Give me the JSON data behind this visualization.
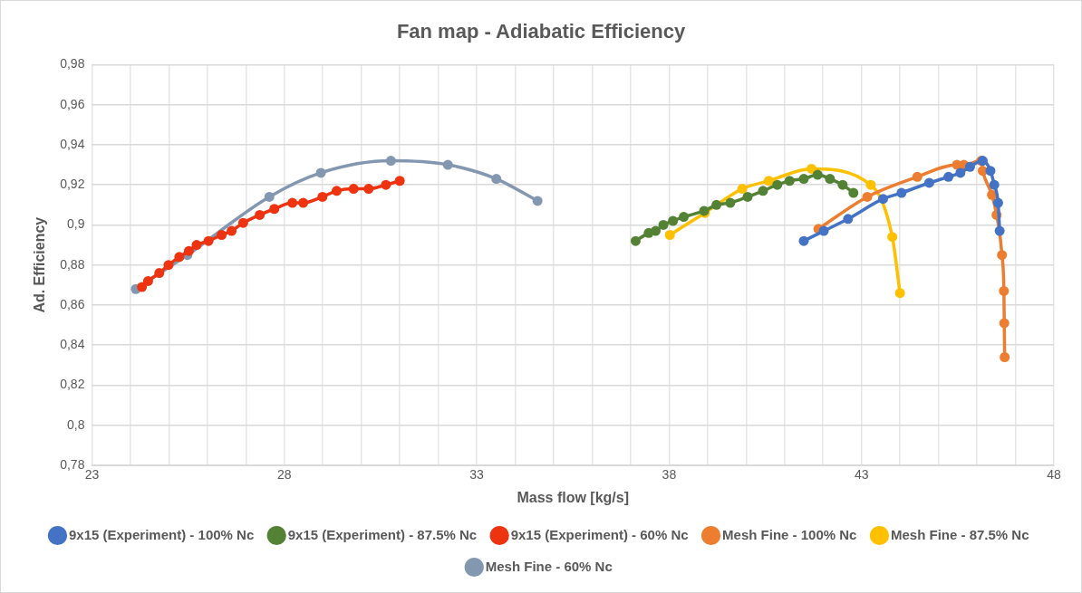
{
  "chart_data": {
    "type": "line",
    "title": "Fan map - Adiabatic Efficiency",
    "xlabel": "Mass flow [kg/s]",
    "ylabel": "Ad. Efficiency",
    "series": [
      {
        "name": "9x15 (Experiment) - 100% Nc",
        "color": "#4472c4",
        "x": [
          41.5,
          42.02,
          42.65,
          43.56,
          44.04,
          44.76,
          45.26,
          45.57,
          45.82,
          46.15,
          46.35,
          46.45,
          46.55,
          46.59
        ],
        "values": [
          0.892,
          0.897,
          0.903,
          0.913,
          0.916,
          0.921,
          0.924,
          0.926,
          0.929,
          0.932,
          0.927,
          0.92,
          0.911,
          0.897
        ]
      },
      {
        "name": "9x15 (Experiment) - 87.5% Nc",
        "color": "#548235",
        "x": [
          37.13,
          37.47,
          37.65,
          37.85,
          38.1,
          38.38,
          38.91,
          39.23,
          39.59,
          40.04,
          40.44,
          40.81,
          41.13,
          41.5,
          41.86,
          42.18,
          42.51,
          42.79
        ],
        "values": [
          0.892,
          0.896,
          0.897,
          0.9,
          0.902,
          0.904,
          0.907,
          0.91,
          0.911,
          0.914,
          0.917,
          0.92,
          0.922,
          0.923,
          0.925,
          0.923,
          0.92,
          0.916
        ]
      },
      {
        "name": "9x15 (Experiment) - 60% Nc",
        "color": "#ee3311",
        "x": [
          24.3,
          24.46,
          24.75,
          24.99,
          25.27,
          25.52,
          25.72,
          26.03,
          26.37,
          26.63,
          26.93,
          27.36,
          27.74,
          28.21,
          28.49,
          28.99,
          29.36,
          29.8,
          30.19,
          30.64,
          31.0
        ],
        "values": [
          0.869,
          0.872,
          0.876,
          0.88,
          0.884,
          0.887,
          0.89,
          0.892,
          0.895,
          0.897,
          0.901,
          0.905,
          0.908,
          0.911,
          0.911,
          0.914,
          0.917,
          0.918,
          0.918,
          0.92,
          0.922
        ]
      },
      {
        "name": "Mesh Fine - 100% Nc",
        "color": "#ed7d31",
        "x": [
          41.88,
          43.15,
          44.45,
          45.48,
          45.66,
          46.11,
          46.15,
          46.39,
          46.51,
          46.65,
          46.7,
          46.71,
          46.72
        ],
        "values": [
          0.898,
          0.914,
          0.924,
          0.93,
          0.93,
          0.932,
          0.927,
          0.915,
          0.905,
          0.885,
          0.867,
          0.851,
          0.834
        ]
      },
      {
        "name": "Mesh Fine - 87.5% Nc",
        "color": "#ffc000",
        "x": [
          38.02,
          38.93,
          39.9,
          40.59,
          41.7,
          43.24,
          43.8,
          44.0
        ],
        "values": [
          0.895,
          0.906,
          0.918,
          0.922,
          0.928,
          0.92,
          0.894,
          0.866
        ]
      },
      {
        "name": "Mesh Fine - 60% Nc",
        "color": "#8497b0",
        "x": [
          24.14,
          25.48,
          27.61,
          28.95,
          30.77,
          32.25,
          33.51,
          34.58
        ],
        "values": [
          0.868,
          0.885,
          0.914,
          0.926,
          0.932,
          0.93,
          0.923,
          0.912
        ]
      }
    ],
    "xlim": [
      23,
      48
    ],
    "xticks": [
      23,
      {
        "value": 24,
        "label": null
      },
      {
        "value": 25,
        "label": null
      },
      {
        "value": 26,
        "label": null
      },
      {
        "value": 27,
        "label": null
      },
      28,
      {
        "value": 29,
        "label": null
      },
      {
        "value": 30,
        "label": null
      },
      {
        "value": 31,
        "label": null
      },
      {
        "value": 32,
        "label": null
      },
      33,
      {
        "value": 34,
        "label": null
      },
      {
        "value": 35,
        "label": null
      },
      {
        "value": 36,
        "label": null
      },
      {
        "value": 37,
        "label": null
      },
      38,
      {
        "value": 39,
        "label": null
      },
      {
        "value": 40,
        "label": null
      },
      {
        "value": 41,
        "label": null
      },
      {
        "value": 42,
        "label": null
      },
      43,
      {
        "value": 44,
        "label": null
      },
      {
        "value": 45,
        "label": null
      },
      {
        "value": 46,
        "label": null
      },
      {
        "value": 47,
        "label": null
      },
      48
    ],
    "ylim": [
      0.78,
      0.98
    ],
    "yticks": [
      {
        "value": 0.78,
        "label": "0,78"
      },
      {
        "value": 0.8,
        "label": "0,8"
      },
      {
        "value": 0.82,
        "label": "0,82"
      },
      {
        "value": 0.84,
        "label": "0,84"
      },
      {
        "value": 0.86,
        "label": "0,86"
      },
      {
        "value": 0.88,
        "label": "0,88"
      },
      {
        "value": 0.9,
        "label": "0,9"
      },
      {
        "value": 0.92,
        "label": "0,92"
      },
      {
        "value": 0.94,
        "label": "0,94"
      },
      {
        "value": 0.96,
        "label": "0,96"
      },
      {
        "value": 0.98,
        "label": "0,98"
      }
    ],
    "grid": true,
    "legend": "bottom",
    "marker": "circle",
    "line_style": "solid"
  }
}
